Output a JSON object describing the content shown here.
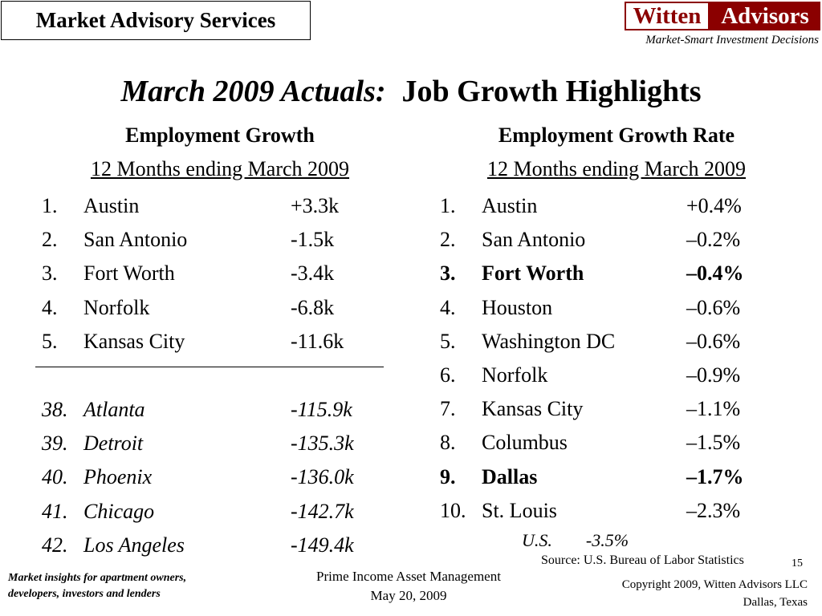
{
  "header": {
    "box_title": "Market Advisory Services",
    "logo_left": "Witten",
    "logo_right": "Advisors",
    "tagline": "Market-Smart Investment Decisions"
  },
  "title": {
    "italic_part": "March 2009 Actuals:",
    "main_part": "Job Growth Highlights"
  },
  "left": {
    "heading": "Employment Growth",
    "subheading": "12 Months ending March 2009",
    "top": [
      {
        "rank": "1.",
        "city": "Austin",
        "value": "+3.3k"
      },
      {
        "rank": "2.",
        "city": "San Antonio",
        "value": "-1.5k"
      },
      {
        "rank": "3.",
        "city": "Fort Worth",
        "value": "-3.4k"
      },
      {
        "rank": "4.",
        "city": "Norfolk",
        "value": "-6.8k"
      },
      {
        "rank": "5.",
        "city": "Kansas City",
        "value": "-11.6k"
      }
    ],
    "bottom": [
      {
        "rank": "38.",
        "city": "Atlanta",
        "value": "-115.9k"
      },
      {
        "rank": "39.",
        "city": "Detroit",
        "value": "-135.3k"
      },
      {
        "rank": "40.",
        "city": "Phoenix",
        "value": "-136.0k"
      },
      {
        "rank": "41.",
        "city": "Chicago",
        "value": "-142.7k"
      },
      {
        "rank": "42.",
        "city": "Los Angeles",
        "value": "-149.4k"
      }
    ]
  },
  "right": {
    "heading": "Employment Growth Rate",
    "subheading": "12 Months ending March 2009",
    "rows": [
      {
        "rank": "1.",
        "city": "Austin",
        "value": "+0.4%"
      },
      {
        "rank": "2.",
        "city": "San Antonio",
        "value": "–0.2%"
      },
      {
        "rank": "3.",
        "city": "Fort Worth",
        "value": "–0.4%"
      },
      {
        "rank": "4.",
        "city": "Houston",
        "value": "–0.6%"
      },
      {
        "rank": "5.",
        "city": "Washington DC",
        "value": "–0.6%"
      },
      {
        "rank": "6.",
        "city": "Norfolk",
        "value": "–0.9%"
      },
      {
        "rank": "7.",
        "city": "Kansas City",
        "value": "–1.1%"
      },
      {
        "rank": "8.",
        "city": "Columbus",
        "value": "–1.5%"
      },
      {
        "rank": "9.",
        "city": "Dallas",
        "value": "–1.7%"
      },
      {
        "rank": "10.",
        "city": "St. Louis",
        "value": "–2.3%"
      }
    ],
    "us_label": "U.S.",
    "us_value": "-3.5%"
  },
  "footer": {
    "source": "Source:  U.S. Bureau of Labor Statistics",
    "page_number": "15",
    "left_line1": "Market insights for apartment owners,",
    "left_line2": "developers, investors and lenders",
    "mid_line1": "Prime Income Asset Management",
    "mid_line2": "May 20, 2009",
    "right_line1": "Copyright 2009, Witten Advisors LLC",
    "right_line2": "Dallas, Texas"
  }
}
